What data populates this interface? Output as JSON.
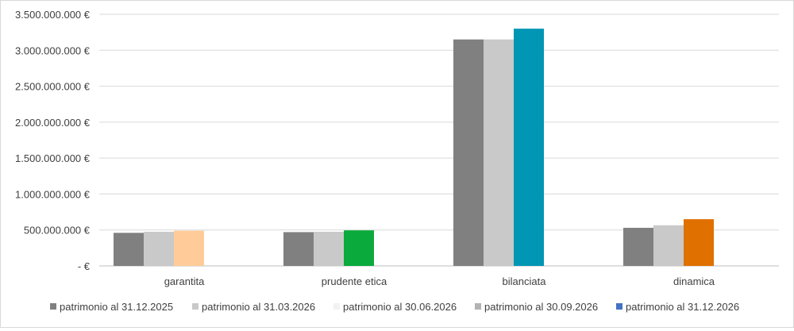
{
  "chart_data": {
    "type": "bar",
    "categories": [
      "garantita",
      "prudente etica",
      "bilanciata",
      "dinamica"
    ],
    "ylim": [
      0,
      3500000000
    ],
    "yticks": [
      0,
      500000000,
      1000000000,
      1500000000,
      2000000000,
      2500000000,
      3000000000,
      3500000000
    ],
    "ytick_labels": [
      "-   €",
      "500.000.000 €",
      "1.000.000.000 €",
      "1.500.000.000 €",
      "2.000.000.000 €",
      "2.500.000.000 €",
      "3.000.000.000 €",
      "3.500.000.000 €"
    ],
    "grid": true,
    "legend_position": "bottom",
    "series": [
      {
        "name": "patrimonio al 31.12.2025",
        "legend_color": "#808080",
        "values": [
          460000000,
          470000000,
          3150000000,
          530000000
        ],
        "colors": [
          "#808080",
          "#808080",
          "#808080",
          "#808080"
        ]
      },
      {
        "name": "patrimonio al 31.03.2026",
        "legend_color": "#c9c9c9",
        "values": [
          475000000,
          475000000,
          3150000000,
          565000000
        ],
        "colors": [
          "#c9c9c9",
          "#c9c9c9",
          "#c9c9c9",
          "#c9c9c9"
        ]
      },
      {
        "name": "patrimonio al 30.06.2026",
        "legend_color": "#f2f2f2",
        "values": [
          490000000,
          495000000,
          3300000000,
          650000000
        ],
        "colors": [
          "#ffcc99",
          "#0aab3c",
          "#0096b4",
          "#e07000"
        ]
      },
      {
        "name": "patrimonio al 30.09.2026",
        "legend_color": "#b3b3b3",
        "values": [
          null,
          null,
          null,
          null
        ],
        "colors": [
          "#b3b3b3",
          "#b3b3b3",
          "#b3b3b3",
          "#b3b3b3"
        ]
      },
      {
        "name": "patrimonio al 31.12.2026",
        "legend_color": "#4472c4",
        "values": [
          null,
          null,
          null,
          null
        ],
        "colors": [
          "#4472c4",
          "#4472c4",
          "#4472c4",
          "#4472c4"
        ]
      }
    ]
  }
}
